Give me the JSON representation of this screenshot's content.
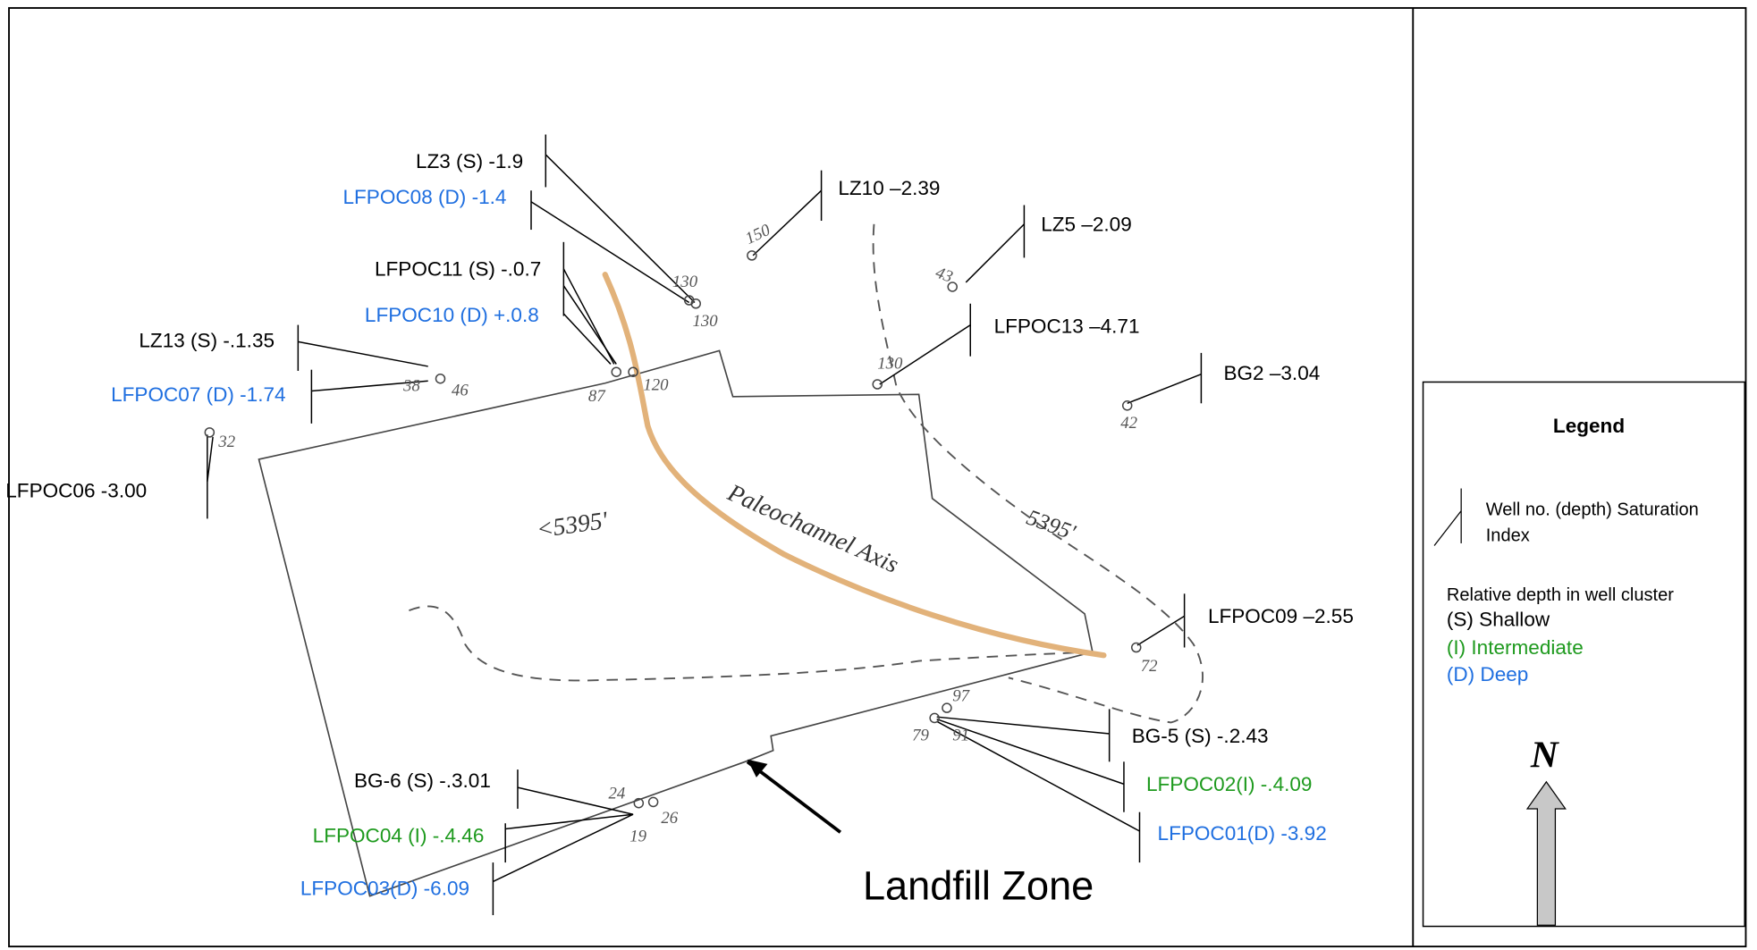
{
  "labels": [
    {
      "text": "LZ3 (S) -1.9",
      "color": "#000000"
    },
    {
      "text": "LFPOC08 (D) -1.4",
      "color": "#1f6fe0"
    },
    {
      "text": "LZ10  –2.39",
      "color": "#000000"
    },
    {
      "text": "LZ5  –2.09",
      "color": "#000000"
    },
    {
      "text": "LFPOC11 (S) -.0.7",
      "color": "#000000"
    },
    {
      "text": "LFPOC10 (D) +.0.8",
      "color": "#1f6fe0"
    },
    {
      "text": "LFPOC13 –4.71",
      "color": "#000000"
    },
    {
      "text": "LZ13 (S) -.1.35",
      "color": "#000000"
    },
    {
      "text": "LFPOC07 (D) -1.74",
      "color": "#1f6fe0"
    },
    {
      "text": "BG2  –3.04",
      "color": "#000000"
    },
    {
      "text": "LFPOC06  -3.00",
      "color": "#000000"
    },
    {
      "text": "LFPOC09  –2.55",
      "color": "#000000"
    },
    {
      "text": "BG-5 (S) -.2.43",
      "color": "#000000"
    },
    {
      "text": "LFPOC02(I) -.4.09",
      "color": "#1e9a1e"
    },
    {
      "text": "LFPOC01(D) -3.92",
      "color": "#1f6fe0"
    },
    {
      "text": "BG-6 (S) -.3.01",
      "color": "#000000"
    },
    {
      "text": "LFPOC04 (I) -.4.46",
      "color": "#1e9a1e"
    },
    {
      "text": "LFPOC03(D) -6.09",
      "color": "#1f6fe0"
    }
  ],
  "well_numbers": [
    "150",
    "130",
    "130",
    "43",
    "130",
    "87",
    "120",
    "38",
    "46",
    "32",
    "42",
    "72",
    "97",
    "79",
    "91",
    "24",
    "26",
    "19"
  ],
  "annotations": {
    "paleochannel": "Paleochannel Axis",
    "elevation_inside": "<5395'",
    "elevation_contour": "5395'",
    "zone": "Landfill Zone"
  },
  "legend": {
    "title": "Legend",
    "item_line1": "Well no. (depth) Saturation",
    "item_line2": "Index",
    "depth_title": "Relative depth in well cluster",
    "shallow": "(S) Shallow",
    "intermediate": "(I) Intermediate",
    "deep": "(D) Deep",
    "north": "N"
  }
}
